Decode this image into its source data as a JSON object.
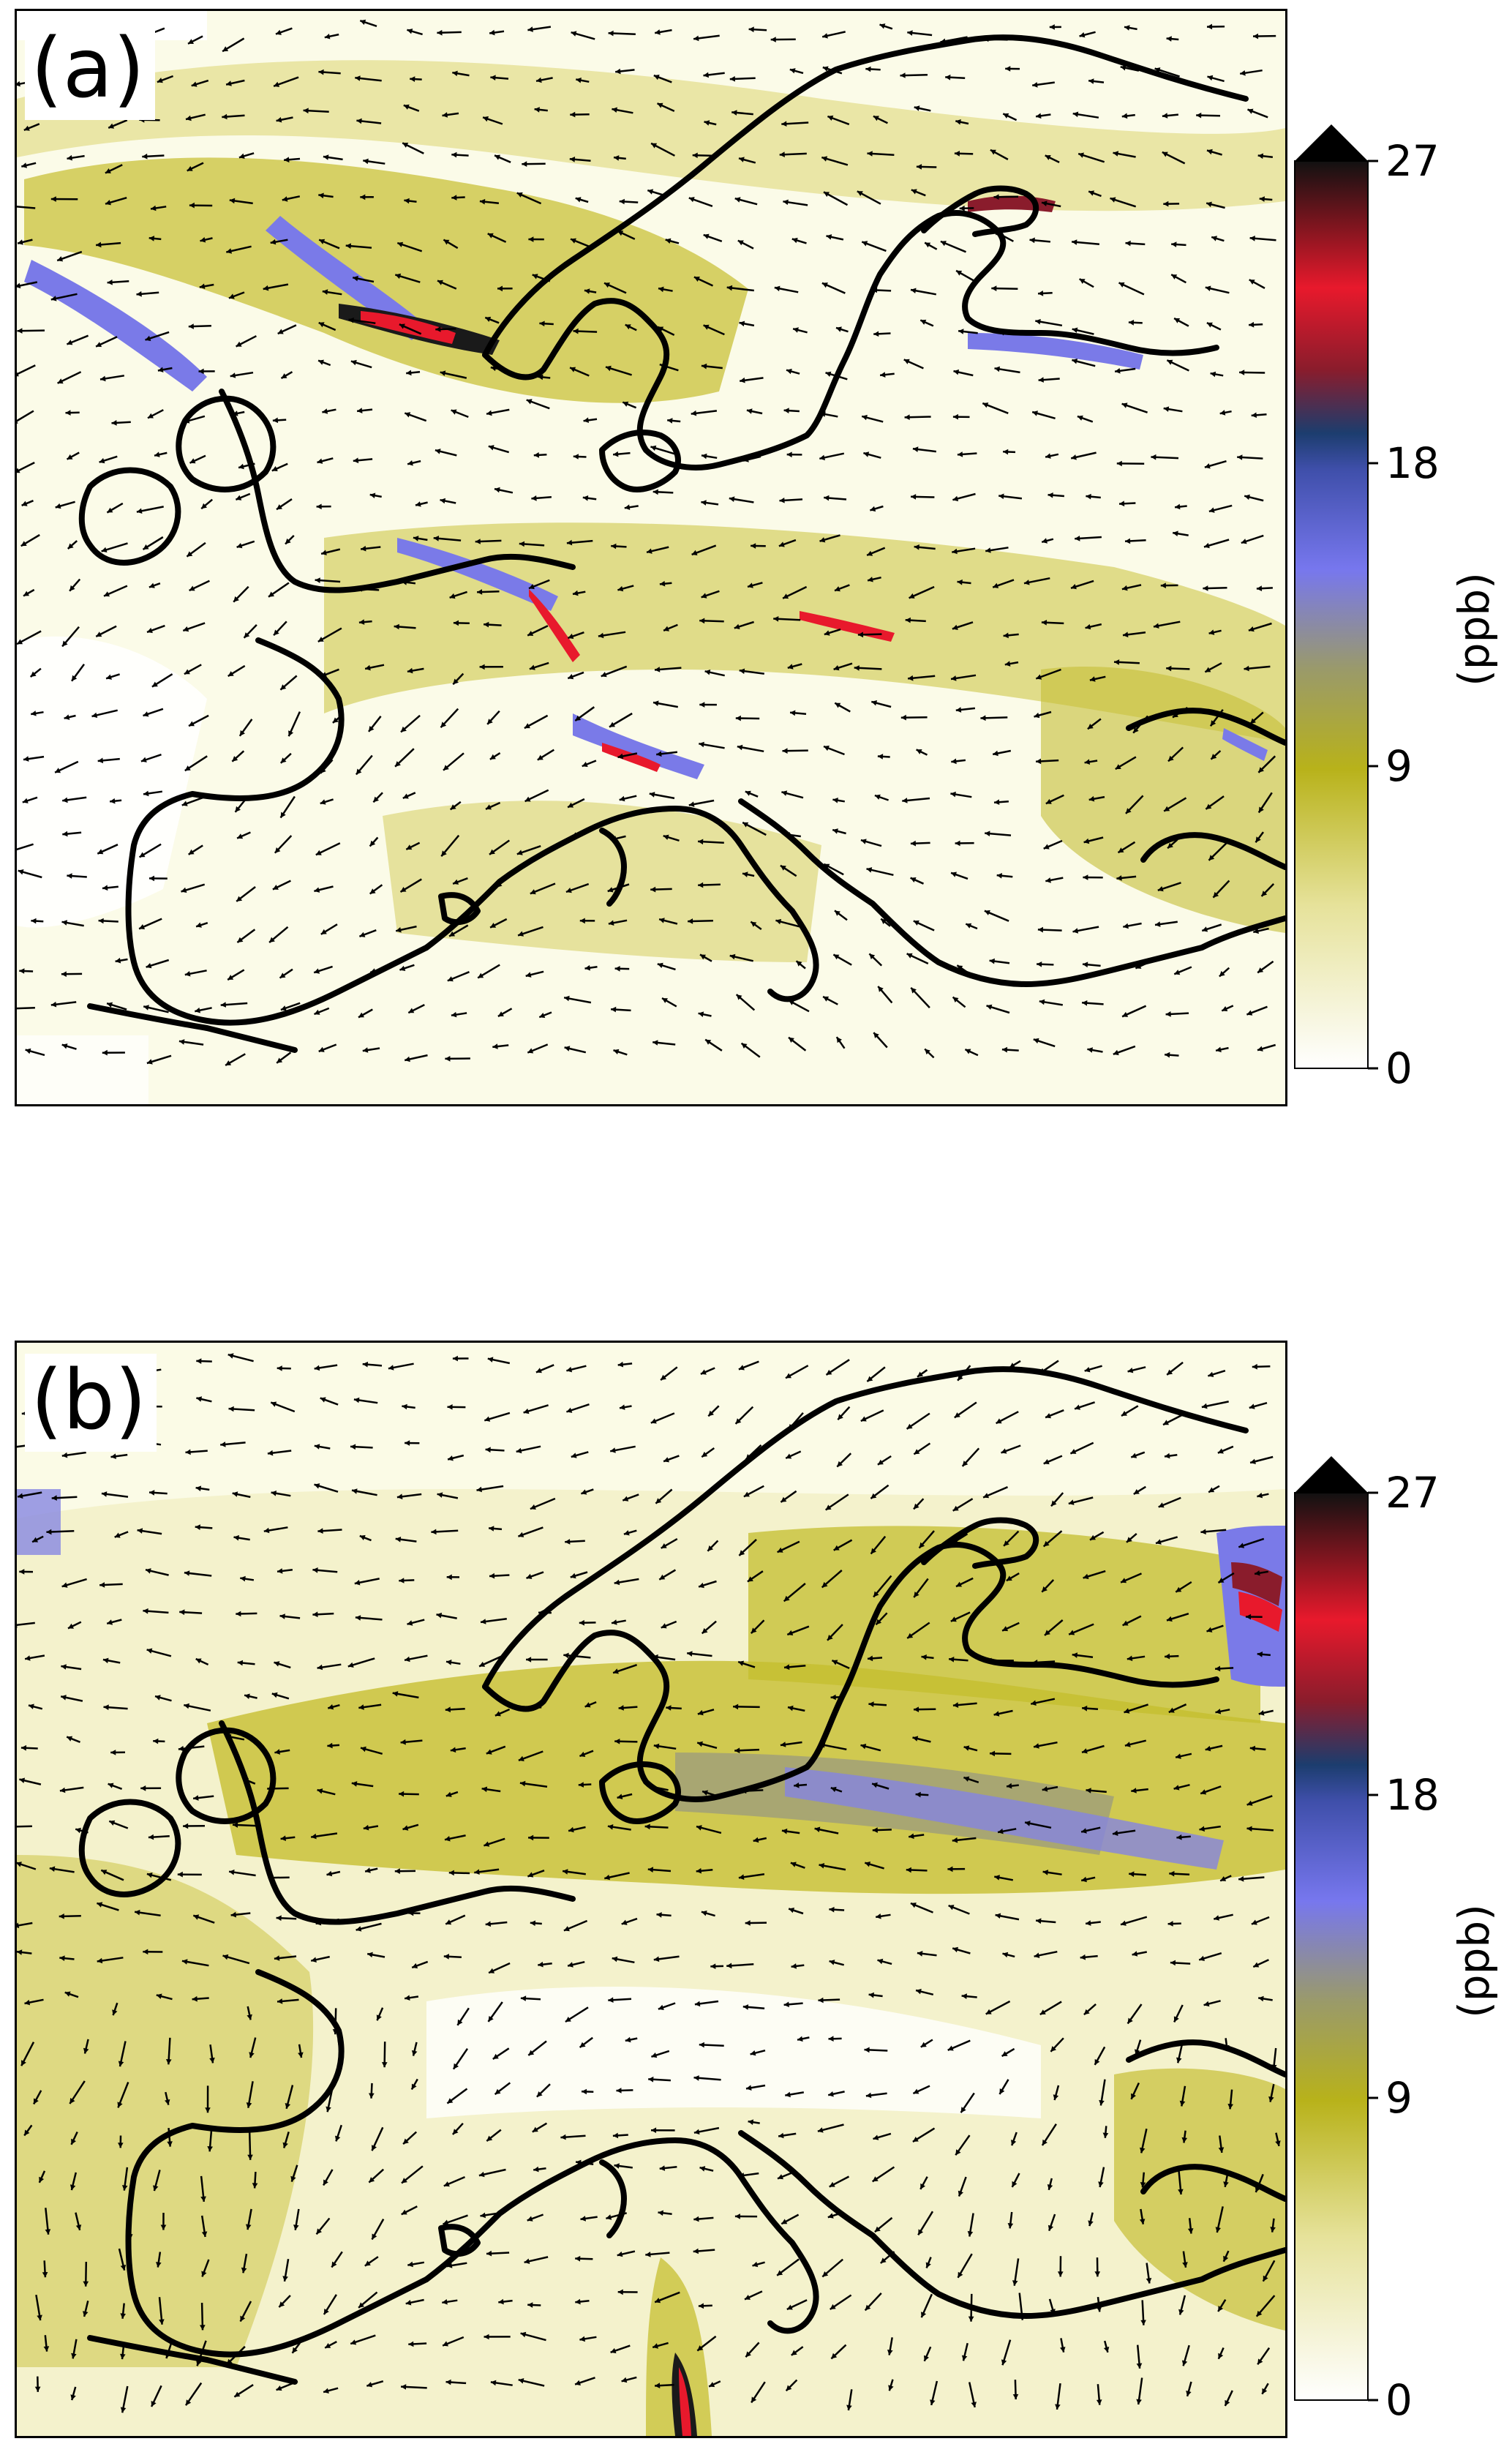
{
  "panels": [
    {
      "id": "a",
      "label": "(a)"
    },
    {
      "id": "b",
      "label": "(b)"
    }
  ],
  "colorbar": {
    "unit": "(ppb)",
    "ticks": [
      "0",
      "9",
      "18",
      "27"
    ],
    "tick_values": [
      0,
      9,
      18,
      27
    ],
    "extend": "max",
    "colors": [
      "#ffffff",
      "#e3e0a0",
      "#b8b21a",
      "#9a9a6a",
      "#7777ee",
      "#3a4aa0",
      "#1c3d6e",
      "#8a1c2c",
      "#e8192c",
      "#111111"
    ]
  },
  "colors": {
    "coastline": "#000000",
    "field_low": "#fbfbe6",
    "field_mid": "#c4bd2e",
    "field_high": "#7f7fe6",
    "field_peak": "#e01a2a"
  },
  "icons": {
    "wind_vector": "arrow-icon"
  }
}
